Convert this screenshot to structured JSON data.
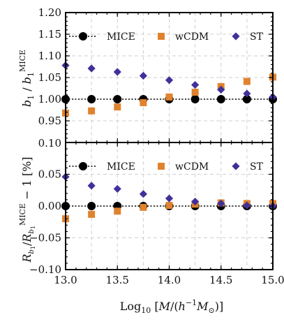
{
  "figure": {
    "xlabel": "Log₁₀ [M/(h⁻¹M⊙)]"
  },
  "chart_data": [
    {
      "type": "scatter",
      "panel": "top",
      "ylabel": "b₁ / b₁ᴹᴵᶜᴱ",
      "xlim": [
        13.0,
        15.0
      ],
      "ylim": [
        0.9,
        1.2
      ],
      "xticks": [
        "13.0",
        "13.5",
        "14.0",
        "14.5",
        "15.0"
      ],
      "xtick_values": [
        13.0,
        13.5,
        14.0,
        14.5,
        15.0
      ],
      "yticks": [
        "0.95",
        "1.00",
        "1.05",
        "1.10",
        "1.15",
        "1.20"
      ],
      "ytick_values": [
        0.95,
        1.0,
        1.05,
        1.1,
        1.15,
        1.2
      ],
      "bottom_tick_label": "0.10",
      "grid": true,
      "legend_position": "top",
      "x": [
        13.0,
        13.25,
        13.5,
        13.75,
        14.0,
        14.25,
        14.5,
        14.75,
        15.0
      ],
      "series": [
        {
          "name": "MICE",
          "marker": "circle",
          "color": "#000000",
          "line": "dotted",
          "values": [
            1.0,
            1.0,
            1.0,
            1.0,
            1.0,
            1.0,
            1.0,
            1.0,
            1.0
          ]
        },
        {
          "name": "wCDM",
          "marker": "square",
          "color": "#e0822d",
          "values": [
            0.968,
            0.973,
            0.982,
            0.992,
            1.005,
            1.016,
            1.029,
            1.041,
            1.051
          ]
        },
        {
          "name": "ST",
          "marker": "diamond",
          "color": "#41309a",
          "values": [
            1.078,
            1.071,
            1.063,
            1.054,
            1.044,
            1.033,
            1.022,
            1.013,
            1.005
          ]
        }
      ]
    },
    {
      "type": "scatter",
      "panel": "bottom",
      "ylabel": "R_b₁ / R_b₁ᴹᴵᶜᴱ − 1 [%]",
      "xlim": [
        13.0,
        15.0
      ],
      "ylim": [
        -0.1,
        0.1
      ],
      "xticks": [
        "13.0",
        "13.5",
        "14.0",
        "14.5",
        "15.0"
      ],
      "xtick_values": [
        13.0,
        13.5,
        14.0,
        14.5,
        15.0
      ],
      "yticks": [
        "−0.10",
        "−0.05",
        "0.00",
        "0.05"
      ],
      "ytick_values": [
        -0.1,
        -0.05,
        0.0,
        0.05
      ],
      "grid": true,
      "legend_position": "top",
      "x": [
        13.0,
        13.25,
        13.5,
        13.75,
        14.0,
        14.25,
        14.5,
        14.75,
        15.0
      ],
      "series": [
        {
          "name": "MICE",
          "marker": "circle",
          "color": "#000000",
          "line": "dotted",
          "values": [
            0.0,
            0.0,
            0.0,
            0.0,
            0.0,
            0.0,
            0.0,
            0.0,
            0.0
          ]
        },
        {
          "name": "wCDM",
          "marker": "square",
          "color": "#e0822d",
          "values": [
            -0.02,
            -0.013,
            -0.008,
            -0.002,
            0.001,
            0.003,
            0.005,
            0.004,
            0.004
          ]
        },
        {
          "name": "ST",
          "marker": "diamond",
          "color": "#41309a",
          "values": [
            0.046,
            0.032,
            0.027,
            0.019,
            0.012,
            0.007,
            0.004,
            0.001,
            0.0
          ]
        }
      ]
    }
  ]
}
